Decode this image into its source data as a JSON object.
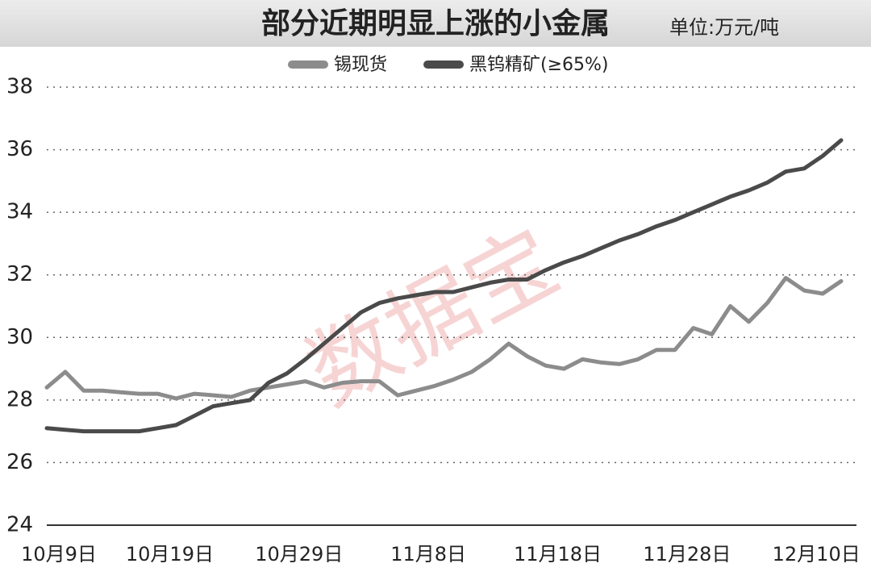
{
  "chart_data": {
    "type": "line",
    "title": "部分近期明显上涨的小金属",
    "subtitle": "单位:万元/吨",
    "watermark": "数据宝",
    "categories": [
      "10月9日",
      null,
      null,
      null,
      null,
      null,
      "10月19日",
      null,
      null,
      null,
      null,
      null,
      null,
      "10月29日",
      null,
      null,
      null,
      null,
      null,
      null,
      "11月8日",
      null,
      null,
      null,
      null,
      null,
      null,
      "11月18日",
      null,
      null,
      null,
      null,
      null,
      null,
      "11月28日",
      null,
      null,
      null,
      null,
      null,
      null,
      "12月10日",
      null,
      null
    ],
    "series": [
      {
        "name": "锡现货",
        "color": "#8c8c8c",
        "values": [
          28.4,
          28.9,
          28.3,
          28.3,
          28.25,
          28.2,
          28.2,
          28.05,
          28.2,
          28.15,
          28.1,
          28.3,
          28.4,
          28.5,
          28.6,
          28.4,
          28.55,
          28.6,
          28.6,
          28.15,
          28.3,
          28.45,
          28.65,
          28.9,
          29.3,
          29.8,
          29.4,
          29.1,
          29.0,
          29.3,
          29.2,
          29.15,
          29.3,
          29.6,
          29.6,
          30.3,
          30.1,
          31.0,
          30.5,
          31.1,
          31.9,
          31.5,
          31.4,
          31.8
        ]
      },
      {
        "name": "黑钨精矿(≥65%)",
        "color": "#4a4a4a",
        "values": [
          27.1,
          27.05,
          27.0,
          27.0,
          27.0,
          27.0,
          27.1,
          27.2,
          27.5,
          27.8,
          27.9,
          28.0,
          28.55,
          28.85,
          29.3,
          29.8,
          30.3,
          30.8,
          31.1,
          31.25,
          31.35,
          31.45,
          31.45,
          31.6,
          31.75,
          31.85,
          31.85,
          32.15,
          32.4,
          32.6,
          32.85,
          33.1,
          33.3,
          33.55,
          33.75,
          34.0,
          34.25,
          34.5,
          34.7,
          34.95,
          35.3,
          35.4,
          35.8,
          36.3
        ]
      }
    ],
    "ylim": [
      24,
      38
    ],
    "yticks": [
      24,
      26,
      28,
      30,
      32,
      34,
      36,
      38
    ],
    "grid": true
  }
}
